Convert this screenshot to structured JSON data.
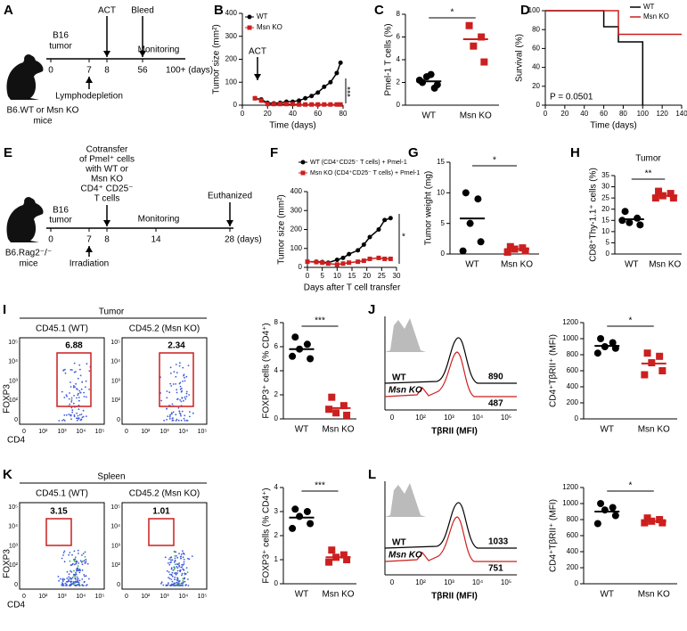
{
  "letters": [
    "A",
    "B",
    "C",
    "D",
    "E",
    "F",
    "G",
    "H",
    "I",
    "J",
    "K",
    "L"
  ],
  "timeline_a": {
    "tumor": [
      "B16",
      "tumor"
    ],
    "events": [
      "ACT",
      "Bleed"
    ],
    "monitoring": "Monitoring",
    "ticks": [
      "0",
      "7",
      "8",
      "56",
      "100+ (days)"
    ],
    "below": "Lymphodepletion",
    "mouse": [
      "B6.WT or Msn KO",
      "mice"
    ]
  },
  "timeline_e": {
    "cotransfer": [
      "Cotransfer",
      "of Pmel⁺ cells",
      "with WT or",
      "Msn KO",
      "CD4⁺ CD25⁻",
      "T cells"
    ],
    "tumor": [
      "B16",
      "tumor"
    ],
    "event": "Euthanized",
    "monitoring": "Monitoring",
    "ticks": [
      "0",
      "7",
      "8",
      "14",
      "28 (days)"
    ],
    "below": "Irradiation",
    "mouse": [
      "B6.Rag2⁻/⁻",
      "mice"
    ]
  },
  "flow_i": {
    "title": "Tumor",
    "columns": [
      "CD45.1 (WT)",
      "CD45.2 (Msn KO)"
    ],
    "gates": [
      6.88,
      2.34
    ],
    "y_axis": "FOXP3",
    "x_axis": "CD4",
    "ticks": [
      "0",
      "10²",
      "10³",
      "10⁴",
      "10⁵"
    ]
  },
  "flow_k": {
    "title": "Spleen",
    "columns": [
      "CD45.1 (WT)",
      "CD45.2 (Msn KO)"
    ],
    "gates": [
      3.15,
      1.01
    ],
    "y_axis": "FOXP3",
    "x_axis": "CD4",
    "ticks": [
      "0",
      "10²",
      "10³",
      "10⁴",
      "10⁵"
    ]
  },
  "hist_j": {
    "labels": [
      "WT",
      "Msn KO"
    ],
    "values": [
      890,
      487
    ],
    "x_axis": "TβRII (MFI)",
    "ticks": [
      "0",
      "10²",
      "10³",
      "10⁴",
      "10⁵"
    ]
  },
  "hist_l": {
    "labels": [
      "WT",
      "Msn KO"
    ],
    "values": [
      1033,
      751
    ],
    "x_axis": "TβRII (MFI)",
    "ticks": [
      "0",
      "10²",
      "10³",
      "10⁴",
      "10⁵"
    ]
  },
  "chart_data": [
    {
      "type": "line",
      "xlabel": "Time (days)",
      "ylabel": "Tumor size (mm²)",
      "x": [
        10,
        15,
        20,
        25,
        30,
        35,
        40,
        45,
        50,
        55,
        60,
        65,
        70,
        75,
        78
      ],
      "series": [
        {
          "name": "WT",
          "color": "#000000",
          "marker": "circle",
          "values": [
            30,
            25,
            10,
            8,
            10,
            15,
            15,
            20,
            30,
            40,
            55,
            80,
            100,
            140,
            185
          ]
        },
        {
          "name": "Msn KO",
          "color": "#cc1f1f",
          "marker": "square",
          "values": [
            30,
            20,
            5,
            5,
            5,
            5,
            5,
            3,
            3,
            3,
            3,
            3,
            3,
            3,
            3
          ]
        }
      ],
      "xlim": [
        0,
        80
      ],
      "xticks": [
        0,
        20,
        40,
        60,
        80
      ],
      "ylim": [
        0,
        400
      ],
      "yticks": [
        0,
        100,
        200,
        300,
        400
      ],
      "annotations": [
        "ACT",
        "***"
      ],
      "legend": "upper left"
    },
    {
      "type": "strip",
      "ylabel": "Pmel-1 T cells (%)",
      "categories": [
        "WT",
        "Msn KO"
      ],
      "series": [
        {
          "color": "#000000",
          "marker": "circle",
          "values": [
            2.0,
            1.5,
            2.5,
            1.8,
            2.2,
            2.7
          ],
          "mean": 2.1
        },
        {
          "color": "#cc1f1f",
          "marker": "square",
          "values": [
            7.0,
            6.0,
            5.2,
            3.8
          ],
          "mean": 5.8
        }
      ],
      "ylim": [
        0,
        8
      ],
      "yticks": [
        0,
        2,
        4,
        6,
        8
      ],
      "annotation": "*"
    },
    {
      "type": "step",
      "xlabel": "Time (days)",
      "ylabel": "Survival (%)",
      "series": [
        {
          "name": "WT",
          "color": "#000000",
          "x": [
            0,
            60,
            60,
            75,
            75,
            100,
            100
          ],
          "values": [
            100,
            100,
            83,
            83,
            67,
            67,
            0
          ]
        },
        {
          "name": "Msn KO",
          "color": "#cc1f1f",
          "x": [
            0,
            75,
            75,
            140
          ],
          "values": [
            100,
            100,
            75,
            75
          ]
        }
      ],
      "xlim": [
        0,
        140
      ],
      "xticks": [
        0,
        20,
        40,
        60,
        80,
        100,
        120,
        140
      ],
      "ylim": [
        0,
        100
      ],
      "yticks": [
        0,
        20,
        40,
        60,
        80,
        100
      ],
      "annotation": "P = 0.0501",
      "legend": "upper right"
    },
    {
      "type": "line",
      "xlabel": "Days after T cell transfer",
      "ylabel": "Tumor size (mm²)",
      "x": [
        0,
        3,
        5,
        7,
        10,
        12,
        14,
        17,
        19,
        21,
        24,
        26,
        28
      ],
      "series": [
        {
          "name": "WT (CD4⁺CD25⁻ T cells) + Pmel-1",
          "color": "#000000",
          "marker": "circle",
          "values": [
            30,
            30,
            28,
            25,
            40,
            50,
            70,
            90,
            120,
            160,
            200,
            250,
            260
          ]
        },
        {
          "name": "Msn KO (CD4⁺CD25⁻ T cells) + Pmel-1",
          "color": "#cc1f1f",
          "marker": "square",
          "values": [
            30,
            28,
            25,
            20,
            15,
            20,
            25,
            30,
            35,
            45,
            50,
            45,
            45
          ]
        }
      ],
      "xlim": [
        0,
        30
      ],
      "xticks": [
        0,
        5,
        10,
        15,
        20,
        25,
        30
      ],
      "ylim": [
        0,
        400
      ],
      "yticks": [
        0,
        100,
        200,
        300,
        400
      ],
      "annotations": [
        "*"
      ],
      "legend": "above"
    },
    {
      "type": "strip",
      "ylabel": "Tumor weight (mg)",
      "categories": [
        "WT",
        "Msn KO"
      ],
      "series": [
        {
          "color": "#000000",
          "marker": "circle",
          "values": [
            10,
            9,
            5,
            2,
            0.5
          ],
          "mean": 5.8
        },
        {
          "color": "#cc1f1f",
          "marker": "square",
          "values": [
            1.2,
            1,
            0.8,
            0.5,
            0.3
          ],
          "mean": 0.8
        }
      ],
      "ylim": [
        0,
        15
      ],
      "yticks": [
        0,
        5,
        10,
        15
      ],
      "annotation": "*"
    },
    {
      "type": "strip",
      "title": "Tumor",
      "ylabel": "CD8⁺Thy-1.1⁺ cells (%)",
      "categories": [
        "WT",
        "Msn KO"
      ],
      "series": [
        {
          "color": "#000000",
          "marker": "circle",
          "values": [
            19,
            16,
            14,
            13,
            15
          ],
          "mean": 15.5
        },
        {
          "color": "#cc1f1f",
          "marker": "square",
          "values": [
            28,
            27,
            26,
            25,
            25
          ],
          "mean": 26
        }
      ],
      "ylim": [
        0,
        35
      ],
      "yticks": [
        0,
        5,
        10,
        15,
        20,
        25,
        30,
        35
      ],
      "annotation": "**"
    },
    {
      "type": "strip",
      "ylabel": "FOXP3⁺ cells (% CD4⁺)",
      "categories": [
        "WT",
        "Msn KO"
      ],
      "series": [
        {
          "color": "#000000",
          "marker": "circle",
          "values": [
            6.8,
            6.2,
            5.8,
            5.0,
            5.2
          ],
          "mean": 5.8
        },
        {
          "color": "#cc1f1f",
          "marker": "square",
          "values": [
            1.8,
            1.1,
            0.5,
            0.3,
            0.8
          ],
          "mean": 0.9
        }
      ],
      "ylim": [
        0,
        8
      ],
      "yticks": [
        0,
        2,
        4,
        6,
        8
      ],
      "annotation": "***"
    },
    {
      "type": "strip",
      "ylabel": "CD4⁺TβRII⁺ (MFI)",
      "categories": [
        "WT",
        "Msn KO"
      ],
      "series": [
        {
          "color": "#000000",
          "marker": "circle",
          "values": [
            1000,
            950,
            900,
            880,
            820
          ],
          "mean": 910
        },
        {
          "color": "#cc1f1f",
          "marker": "square",
          "values": [
            820,
            780,
            700,
            600,
            550
          ],
          "mean": 690
        }
      ],
      "ylim": [
        0,
        1200
      ],
      "yticks": [
        0,
        200,
        400,
        600,
        800,
        1000,
        1200
      ],
      "annotation": "*"
    },
    {
      "type": "strip",
      "ylabel": "FOXP3⁺ cells (% CD4⁺)",
      "categories": [
        "WT",
        "Msn KO"
      ],
      "series": [
        {
          "color": "#000000",
          "marker": "circle",
          "values": [
            3.1,
            3.0,
            2.8,
            2.5,
            2.3
          ],
          "mean": 2.75
        },
        {
          "color": "#cc1f1f",
          "marker": "square",
          "values": [
            1.4,
            1.2,
            1.1,
            1.0,
            0.9
          ],
          "mean": 1.1
        }
      ],
      "ylim": [
        0,
        4
      ],
      "yticks": [
        0,
        1,
        2,
        3,
        4
      ],
      "annotation": "***"
    },
    {
      "type": "strip",
      "ylabel": "CD4⁺TβRII⁺ (MFI)",
      "categories": [
        "WT",
        "Msn KO"
      ],
      "series": [
        {
          "color": "#000000",
          "marker": "circle",
          "values": [
            1000,
            950,
            920,
            850,
            750
          ],
          "mean": 900
        },
        {
          "color": "#cc1f1f",
          "marker": "square",
          "values": [
            820,
            800,
            780,
            760,
            760
          ],
          "mean": 780
        }
      ],
      "ylim": [
        0,
        1200
      ],
      "yticks": [
        0,
        200,
        400,
        600,
        800,
        1000,
        1200
      ],
      "annotation": "*"
    }
  ]
}
